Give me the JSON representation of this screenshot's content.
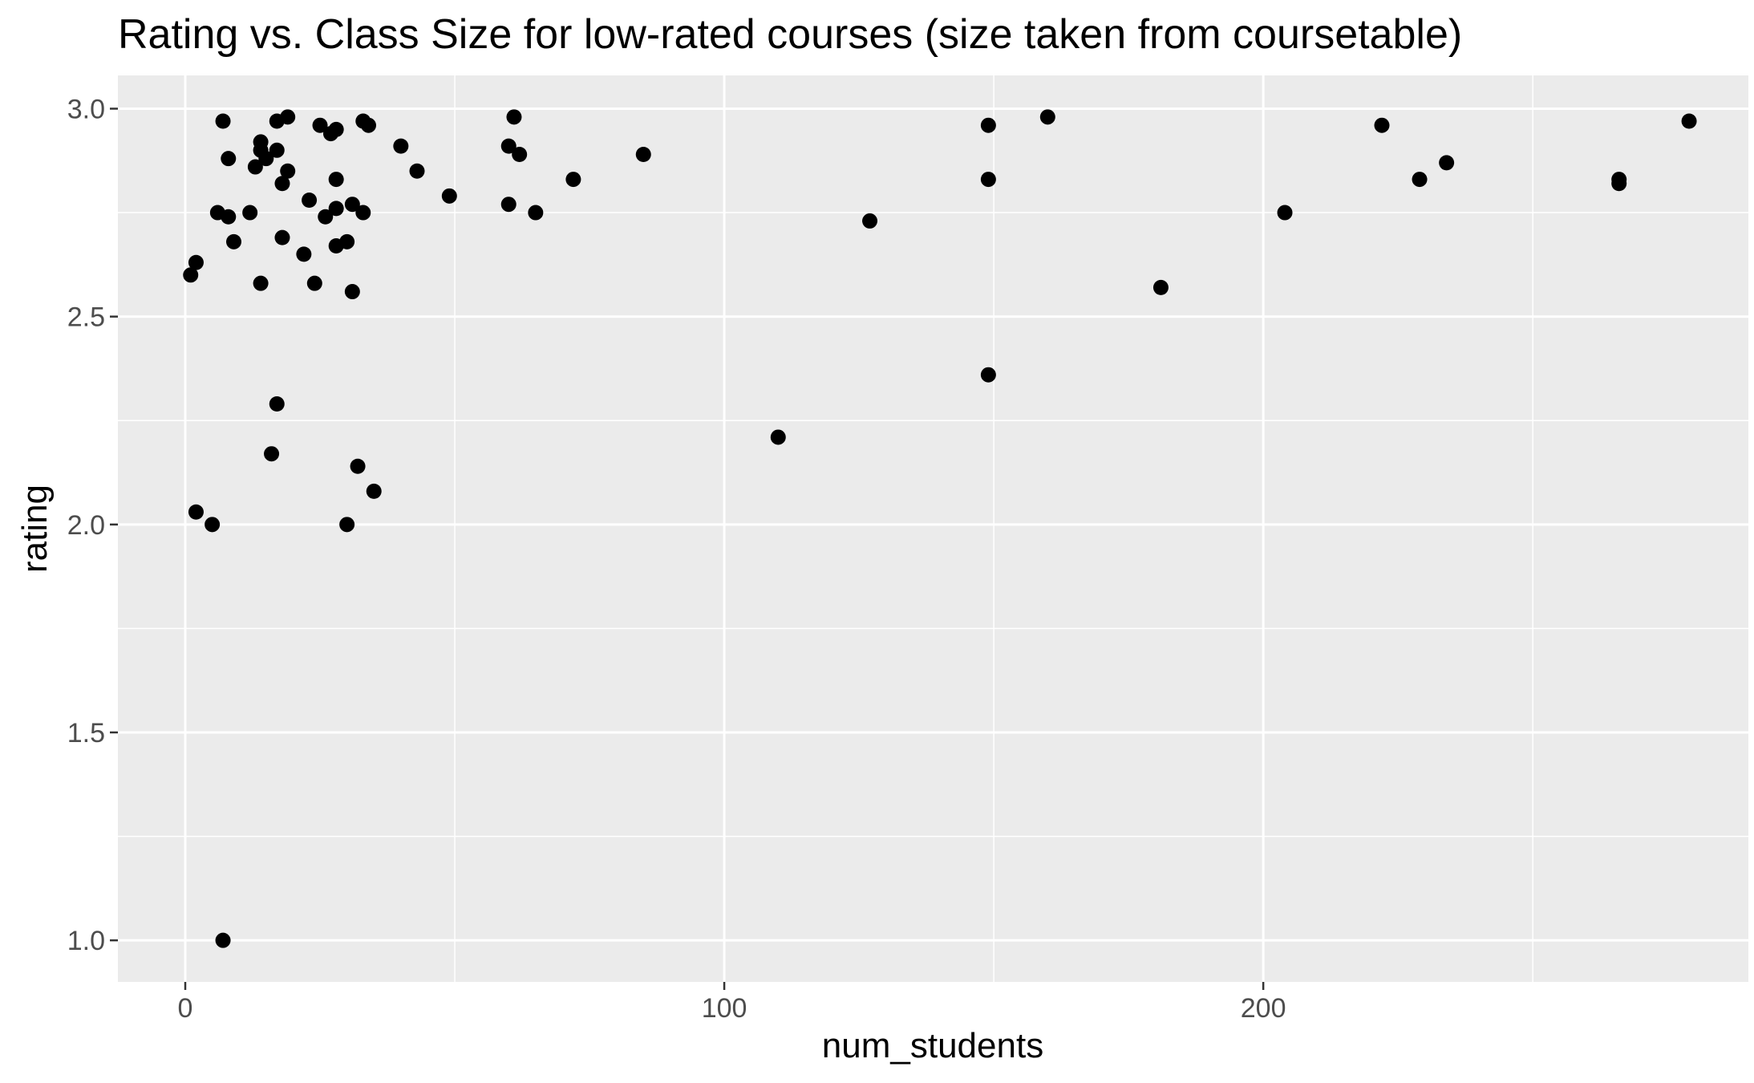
{
  "chart_data": {
    "type": "scatter",
    "title": "Rating vs. Class Size for low-rated courses (size taken from coursetable)",
    "xlabel": "num_students",
    "ylabel": "rating",
    "xlim": [
      -12.5,
      290
    ],
    "ylim": [
      0.9,
      3.08
    ],
    "x_ticks": [
      0,
      100,
      200
    ],
    "x_tick_labels": [
      "0",
      "100",
      "200"
    ],
    "y_ticks": [
      1.0,
      1.5,
      2.0,
      2.5,
      3.0
    ],
    "y_tick_labels": [
      "1.0",
      "1.5",
      "2.0",
      "2.5",
      "3.0"
    ],
    "grid": true,
    "point_color": "#000000",
    "panel_background": "#ebebeb",
    "points": [
      {
        "x": 1,
        "y": 2.6
      },
      {
        "x": 2,
        "y": 2.63
      },
      {
        "x": 2,
        "y": 2.03
      },
      {
        "x": 5,
        "y": 2.0
      },
      {
        "x": 6,
        "y": 2.75
      },
      {
        "x": 7,
        "y": 2.97
      },
      {
        "x": 7,
        "y": 1.0
      },
      {
        "x": 8,
        "y": 2.88
      },
      {
        "x": 8,
        "y": 2.74
      },
      {
        "x": 9,
        "y": 2.68
      },
      {
        "x": 12,
        "y": 2.75
      },
      {
        "x": 13,
        "y": 2.86
      },
      {
        "x": 14,
        "y": 2.92
      },
      {
        "x": 14,
        "y": 2.9
      },
      {
        "x": 14,
        "y": 2.58
      },
      {
        "x": 15,
        "y": 2.88
      },
      {
        "x": 16,
        "y": 2.17
      },
      {
        "x": 17,
        "y": 2.97
      },
      {
        "x": 17,
        "y": 2.9
      },
      {
        "x": 17,
        "y": 2.29
      },
      {
        "x": 18,
        "y": 2.82
      },
      {
        "x": 18,
        "y": 2.69
      },
      {
        "x": 19,
        "y": 2.98
      },
      {
        "x": 19,
        "y": 2.85
      },
      {
        "x": 22,
        "y": 2.65
      },
      {
        "x": 23,
        "y": 2.78
      },
      {
        "x": 24,
        "y": 2.58
      },
      {
        "x": 25,
        "y": 2.96
      },
      {
        "x": 26,
        "y": 2.74
      },
      {
        "x": 27,
        "y": 2.94
      },
      {
        "x": 28,
        "y": 2.95
      },
      {
        "x": 28,
        "y": 2.83
      },
      {
        "x": 28,
        "y": 2.76
      },
      {
        "x": 28,
        "y": 2.67
      },
      {
        "x": 30,
        "y": 2.68
      },
      {
        "x": 30,
        "y": 2.0
      },
      {
        "x": 31,
        "y": 2.77
      },
      {
        "x": 31,
        "y": 2.56
      },
      {
        "x": 32,
        "y": 2.14
      },
      {
        "x": 33,
        "y": 2.97
      },
      {
        "x": 33,
        "y": 2.75
      },
      {
        "x": 34,
        "y": 2.96
      },
      {
        "x": 35,
        "y": 2.08
      },
      {
        "x": 40,
        "y": 2.91
      },
      {
        "x": 43,
        "y": 2.85
      },
      {
        "x": 49,
        "y": 2.79
      },
      {
        "x": 60,
        "y": 2.91
      },
      {
        "x": 60,
        "y": 2.77
      },
      {
        "x": 61,
        "y": 2.98
      },
      {
        "x": 62,
        "y": 2.89
      },
      {
        "x": 65,
        "y": 2.75
      },
      {
        "x": 72,
        "y": 2.83
      },
      {
        "x": 85,
        "y": 2.89
      },
      {
        "x": 110,
        "y": 2.21
      },
      {
        "x": 127,
        "y": 2.73
      },
      {
        "x": 149,
        "y": 2.96
      },
      {
        "x": 149,
        "y": 2.83
      },
      {
        "x": 149,
        "y": 2.36
      },
      {
        "x": 160,
        "y": 2.98
      },
      {
        "x": 181,
        "y": 2.57
      },
      {
        "x": 204,
        "y": 2.75
      },
      {
        "x": 222,
        "y": 2.96
      },
      {
        "x": 229,
        "y": 2.83
      },
      {
        "x": 234,
        "y": 2.87
      },
      {
        "x": 266,
        "y": 2.83
      },
      {
        "x": 266,
        "y": 2.82
      },
      {
        "x": 279,
        "y": 2.97
      }
    ]
  }
}
